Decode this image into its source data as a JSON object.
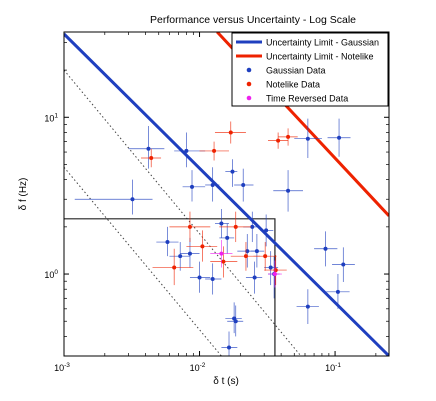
{
  "chart_data": {
    "type": "scatter",
    "title": "Performance versus Uncertainty - Log Scale",
    "xlabel": "δ t (s)",
    "ylabel": "δ f (Hz)",
    "xscale": "log",
    "yscale": "log",
    "xlim": [
      0.001,
      0.25
    ],
    "ylim": [
      0.3,
      35
    ],
    "xticks": [
      {
        "v": 0.001,
        "base": "10",
        "exp": "-3"
      },
      {
        "v": 0.01,
        "base": "10",
        "exp": "-2"
      },
      {
        "v": 0.1,
        "base": "10",
        "exp": "-1"
      }
    ],
    "yticks": [
      {
        "v": 1,
        "base": "10",
        "exp": "0"
      },
      {
        "v": 10,
        "base": "10",
        "exp": "1"
      }
    ],
    "grid": false,
    "legend_position": "top-right",
    "lines": [
      {
        "name": "Uncertainty Limit - Gaussian",
        "color": "#1f3fbf",
        "points": [
          [
            0.001,
            34
          ],
          [
            0.25,
            0.3
          ]
        ]
      },
      {
        "name": "Uncertainty Limit - Notelike",
        "color": "#ee2200",
        "points": [
          [
            0.0135,
            35
          ],
          [
            0.25,
            2.35
          ]
        ]
      }
    ],
    "reference_lines": [
      {
        "style": "dotted",
        "color": "#444444",
        "points": [
          [
            0.001,
            20
          ],
          [
            0.056,
            0.3
          ]
        ]
      },
      {
        "style": "dotted",
        "color": "#444444",
        "points": [
          [
            0.001,
            4.8
          ],
          [
            0.0145,
            0.3
          ]
        ]
      }
    ],
    "box": {
      "color": "#222222",
      "points": [
        [
          0.001,
          2.25
        ],
        [
          0.036,
          2.25
        ],
        [
          0.036,
          0.3
        ]
      ]
    },
    "series": [
      {
        "name": "Gaussian Data",
        "color": "#1f3fbf",
        "points": [
          {
            "x": 0.0042,
            "y": 6.3,
            "xlo": 0.003,
            "xhi": 0.0055,
            "ylo": 4.7,
            "yhi": 8.8
          },
          {
            "x": 0.0032,
            "y": 3.0,
            "xlo": 0.0012,
            "xhi": 0.0045,
            "ylo": 2.4,
            "yhi": 4.0
          },
          {
            "x": 0.008,
            "y": 6.1,
            "xlo": 0.0065,
            "xhi": 0.011,
            "ylo": 4.8,
            "yhi": 8.0
          },
          {
            "x": 0.0088,
            "y": 3.6,
            "xlo": 0.0075,
            "xhi": 0.011,
            "ylo": 2.9,
            "yhi": 4.6
          },
          {
            "x": 0.0125,
            "y": 3.7,
            "xlo": 0.011,
            "xhi": 0.014,
            "ylo": 2.9,
            "yhi": 4.8
          },
          {
            "x": 0.0175,
            "y": 4.5,
            "xlo": 0.0155,
            "xhi": 0.019,
            "ylo": 3.6,
            "yhi": 5.4
          },
          {
            "x": 0.021,
            "y": 3.7,
            "xlo": 0.018,
            "xhi": 0.025,
            "ylo": 2.9,
            "yhi": 4.7
          },
          {
            "x": 0.0145,
            "y": 2.1,
            "xlo": 0.013,
            "xhi": 0.0165,
            "ylo": 1.7,
            "yhi": 2.6
          },
          {
            "x": 0.016,
            "y": 1.7,
            "xlo": 0.014,
            "xhi": 0.018,
            "ylo": 1.35,
            "yhi": 2.1
          },
          {
            "x": 0.0225,
            "y": 1.4,
            "xlo": 0.019,
            "xhi": 0.026,
            "ylo": 1.1,
            "yhi": 1.8
          },
          {
            "x": 0.0245,
            "y": 2.0,
            "xlo": 0.021,
            "xhi": 0.028,
            "ylo": 1.6,
            "yhi": 2.5
          },
          {
            "x": 0.0265,
            "y": 1.4,
            "xlo": 0.024,
            "xhi": 0.03,
            "ylo": 1.1,
            "yhi": 1.8
          },
          {
            "x": 0.031,
            "y": 1.9,
            "xlo": 0.028,
            "xhi": 0.035,
            "ylo": 1.5,
            "yhi": 2.4
          },
          {
            "x": 0.0335,
            "y": 1.1,
            "xlo": 0.03,
            "xhi": 0.038,
            "ylo": 0.85,
            "yhi": 1.4
          },
          {
            "x": 0.0355,
            "y": 1.0,
            "xlo": 0.032,
            "xhi": 0.039,
            "ylo": 0.7,
            "yhi": 1.3
          },
          {
            "x": 0.0255,
            "y": 0.95,
            "xlo": 0.022,
            "xhi": 0.029,
            "ylo": 0.75,
            "yhi": 1.2
          },
          {
            "x": 0.0058,
            "y": 1.6,
            "xlo": 0.0048,
            "xhi": 0.007,
            "ylo": 1.3,
            "yhi": 2.0
          },
          {
            "x": 0.0072,
            "y": 1.3,
            "xlo": 0.006,
            "xhi": 0.0085,
            "ylo": 1.05,
            "yhi": 1.6
          },
          {
            "x": 0.0085,
            "y": 1.35,
            "xlo": 0.0072,
            "xhi": 0.01,
            "ylo": 1.1,
            "yhi": 1.7
          },
          {
            "x": 0.01,
            "y": 0.95,
            "xlo": 0.0085,
            "xhi": 0.012,
            "ylo": 0.76,
            "yhi": 1.2
          },
          {
            "x": 0.0125,
            "y": 0.93,
            "xlo": 0.011,
            "xhi": 0.0145,
            "ylo": 0.74,
            "yhi": 1.17
          },
          {
            "x": 0.018,
            "y": 0.52,
            "xlo": 0.0155,
            "xhi": 0.0205,
            "ylo": 0.42,
            "yhi": 0.66
          },
          {
            "x": 0.0185,
            "y": 0.5,
            "xlo": 0.016,
            "xhi": 0.021,
            "ylo": 0.4,
            "yhi": 0.63
          },
          {
            "x": 0.0165,
            "y": 0.34,
            "xlo": 0.0145,
            "xhi": 0.019,
            "ylo": 0.3,
            "yhi": 0.43
          },
          {
            "x": 0.045,
            "y": 3.4,
            "xlo": 0.035,
            "xhi": 0.058,
            "ylo": 2.5,
            "yhi": 4.6
          },
          {
            "x": 0.063,
            "y": 7.3,
            "xlo": 0.05,
            "xhi": 0.08,
            "ylo": 5.5,
            "yhi": 9.8
          },
          {
            "x": 0.107,
            "y": 7.4,
            "xlo": 0.088,
            "xhi": 0.13,
            "ylo": 5.6,
            "yhi": 9.8
          },
          {
            "x": 0.085,
            "y": 1.45,
            "xlo": 0.07,
            "xhi": 0.104,
            "ylo": 1.12,
            "yhi": 1.87
          },
          {
            "x": 0.115,
            "y": 1.15,
            "xlo": 0.095,
            "xhi": 0.14,
            "ylo": 0.89,
            "yhi": 1.48
          },
          {
            "x": 0.105,
            "y": 0.77,
            "xlo": 0.086,
            "xhi": 0.128,
            "ylo": 0.6,
            "yhi": 1.0
          },
          {
            "x": 0.063,
            "y": 0.62,
            "xlo": 0.052,
            "xhi": 0.076,
            "ylo": 0.48,
            "yhi": 0.8
          }
        ]
      },
      {
        "name": "Notelike Data",
        "color": "#ee2200",
        "points": [
          {
            "x": 0.0044,
            "y": 5.5,
            "xlo": 0.0037,
            "xhi": 0.0052,
            "ylo": 4.8,
            "yhi": 6.3
          },
          {
            "x": 0.0128,
            "y": 6.1,
            "xlo": 0.01,
            "xhi": 0.0165,
            "ylo": 5.3,
            "yhi": 7.0
          },
          {
            "x": 0.017,
            "y": 8.0,
            "xlo": 0.013,
            "xhi": 0.022,
            "ylo": 6.8,
            "yhi": 9.4
          },
          {
            "x": 0.038,
            "y": 7.1,
            "xlo": 0.032,
            "xhi": 0.045,
            "ylo": 6.3,
            "yhi": 8.0
          },
          {
            "x": 0.045,
            "y": 7.5,
            "xlo": 0.038,
            "xhi": 0.053,
            "ylo": 6.6,
            "yhi": 8.5
          },
          {
            "x": 0.0065,
            "y": 1.1,
            "xlo": 0.0045,
            "xhi": 0.009,
            "ylo": 0.85,
            "yhi": 1.45
          },
          {
            "x": 0.0085,
            "y": 2.0,
            "xlo": 0.006,
            "xhi": 0.012,
            "ylo": 1.6,
            "yhi": 2.5
          },
          {
            "x": 0.0105,
            "y": 1.5,
            "xlo": 0.008,
            "xhi": 0.0135,
            "ylo": 1.2,
            "yhi": 1.9
          },
          {
            "x": 0.0185,
            "y": 2.0,
            "xlo": 0.014,
            "xhi": 0.024,
            "ylo": 1.6,
            "yhi": 2.5
          },
          {
            "x": 0.022,
            "y": 1.3,
            "xlo": 0.017,
            "xhi": 0.028,
            "ylo": 1.05,
            "yhi": 1.6
          },
          {
            "x": 0.015,
            "y": 1.2,
            "xlo": 0.012,
            "xhi": 0.019,
            "ylo": 0.95,
            "yhi": 1.5
          },
          {
            "x": 0.0305,
            "y": 1.3,
            "xlo": 0.025,
            "xhi": 0.037,
            "ylo": 1.05,
            "yhi": 1.6
          },
          {
            "x": 0.0365,
            "y": 1.06,
            "xlo": 0.03,
            "xhi": 0.044,
            "ylo": 0.85,
            "yhi": 1.32
          }
        ]
      },
      {
        "name": "Time Reversed Data",
        "color": "#ee22ee",
        "points": [
          {
            "x": 0.0145,
            "y": 1.35,
            "xlo": 0.012,
            "xhi": 0.0175,
            "ylo": 1.1,
            "yhi": 1.65
          },
          {
            "x": 0.036,
            "y": 1.0,
            "xlo": 0.032,
            "xhi": 0.0405,
            "ylo": 0.82,
            "yhi": 1.22
          }
        ]
      }
    ]
  }
}
